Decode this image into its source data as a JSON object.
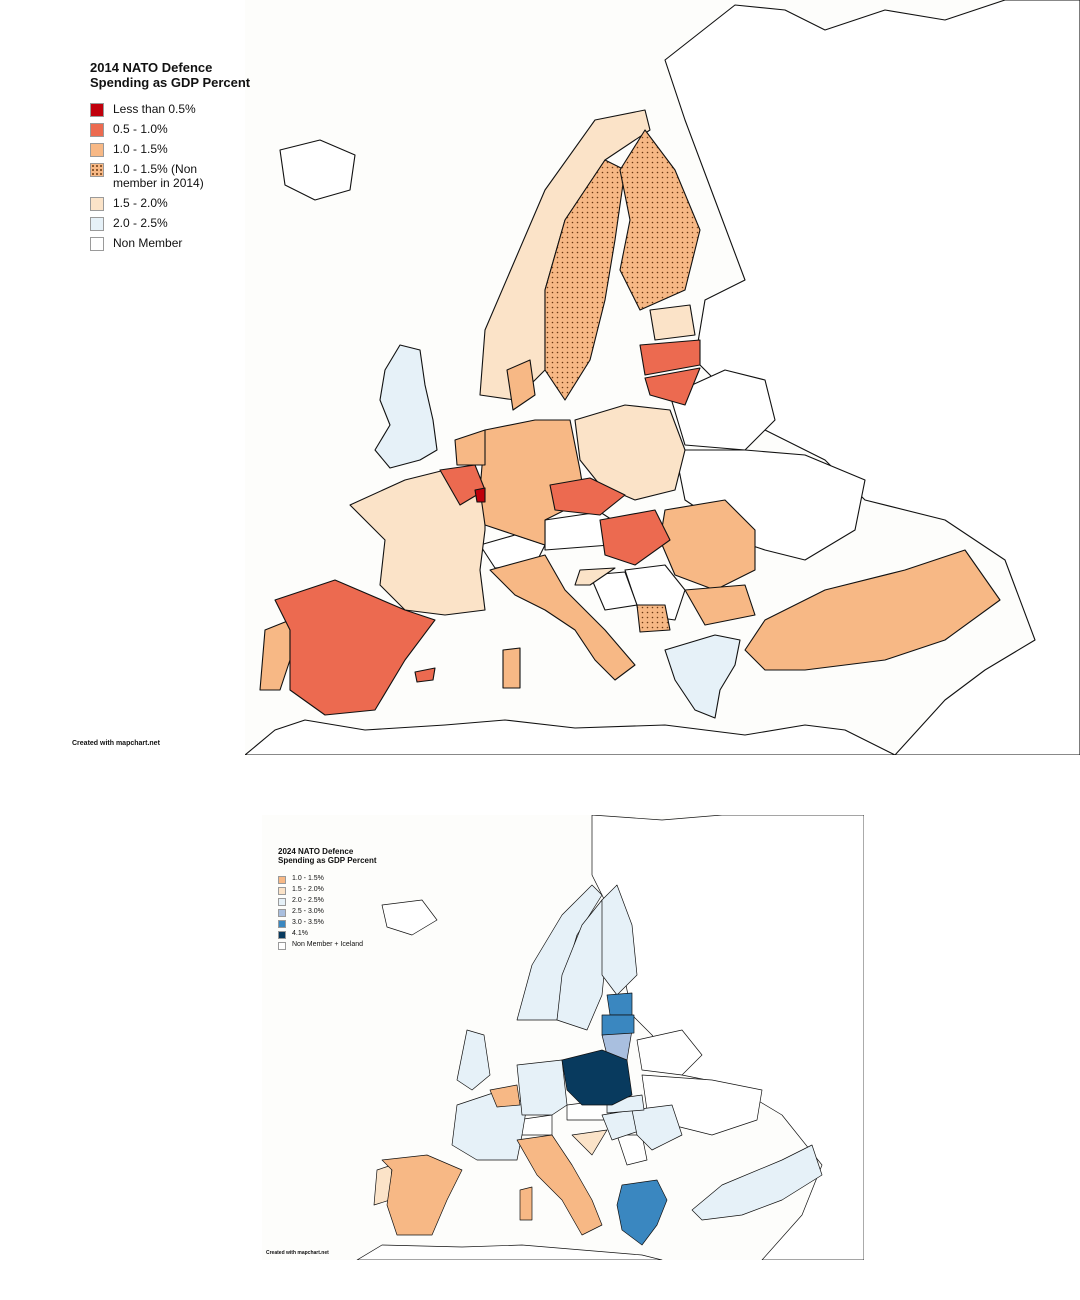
{
  "map_2014": {
    "title": "2014 NATO Defence\nSpending as GDP Percent",
    "credit": "Created with mapchart.net",
    "legend": [
      {
        "label": "Less than 0.5%",
        "color": "#c0000c",
        "pattern": false
      },
      {
        "label": "0.5 - 1.0%",
        "color": "#ec6a50",
        "pattern": false
      },
      {
        "label": "1.0 - 1.5%",
        "color": "#f7b885",
        "pattern": false
      },
      {
        "label": "1.0 - 1.5% (Non\nmember in 2014)",
        "color": "#f7b885",
        "pattern": true
      },
      {
        "label": "1.5 - 2.0%",
        "color": "#fbe3c8",
        "pattern": false
      },
      {
        "label": "2.0 - 2.5%",
        "color": "#e6f1f8",
        "pattern": false
      },
      {
        "label": "Non Member",
        "color": "#ffffff",
        "pattern": false
      }
    ]
  },
  "map_2024": {
    "title": "2024 NATO Defence\nSpending as GDP Percent",
    "credit": "Created with mapchart.net",
    "legend": [
      {
        "label": "1.0 - 1.5%",
        "color": "#f7b885",
        "pattern": false
      },
      {
        "label": "1.5 - 2.0%",
        "color": "#fbe3c8",
        "pattern": false
      },
      {
        "label": "2.0 - 2.5%",
        "color": "#e6f1f8",
        "pattern": false
      },
      {
        "label": "2.5 - 3.0%",
        "color": "#a9bfdf",
        "pattern": false
      },
      {
        "label": "3.0 - 3.5%",
        "color": "#3a87c0",
        "pattern": false
      },
      {
        "label": "4.1%",
        "color": "#083a5e",
        "pattern": false
      },
      {
        "label": "Non Member + Iceland",
        "color": "#ffffff",
        "pattern": false
      }
    ]
  },
  "colors": {
    "lt05": "#c0000c",
    "c05_10": "#ec6a50",
    "c10_15": "#f7b885",
    "c15_20": "#fbe3c8",
    "c20_25": "#e6f1f8",
    "c25_30": "#a9bfdf",
    "c30_35": "#3a87c0",
    "c41": "#083a5e",
    "none": "#ffffff"
  }
}
